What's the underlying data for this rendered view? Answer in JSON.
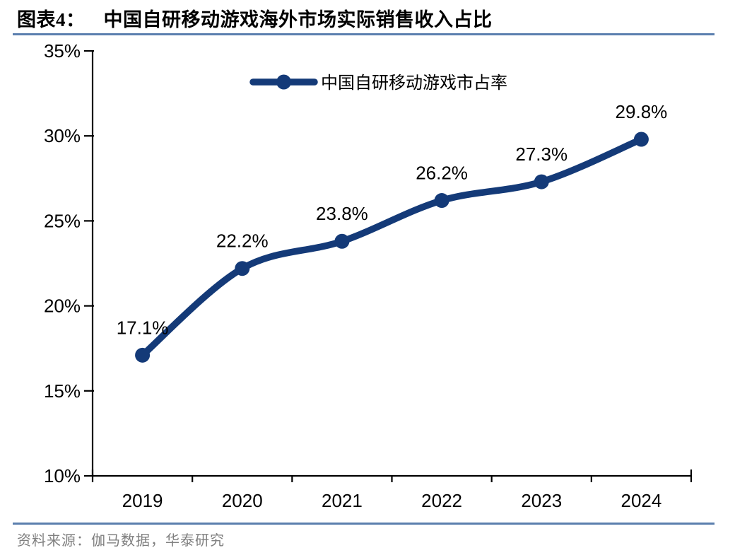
{
  "header": {
    "chart_label": "图表4：",
    "title": "中国自研移动游戏海外市场实际销售收入占比"
  },
  "chart_data": {
    "type": "line",
    "title": "中国自研移动游戏海外市场实际销售收入占比",
    "categories": [
      "2019",
      "2020",
      "2021",
      "2022",
      "2023",
      "2024"
    ],
    "series": [
      {
        "name": "中国自研移动游戏市占率",
        "values": [
          17.1,
          22.2,
          23.8,
          26.2,
          27.3,
          29.8
        ]
      }
    ],
    "data_labels": [
      "17.1%",
      "22.2%",
      "23.8%",
      "26.2%",
      "27.3%",
      "29.8%"
    ],
    "xlabel": "",
    "ylabel": "",
    "ylim": [
      10,
      35
    ],
    "ytick_step": 5,
    "ytick_labels": [
      "10%",
      "15%",
      "20%",
      "25%",
      "30%",
      "35%"
    ],
    "grid": false,
    "legend_position": "top-center",
    "line_color": "#143A78",
    "marker": "circle"
  },
  "footer": {
    "source": "资料来源：伽马数据，华泰研究"
  },
  "colors": {
    "accent_line": "#143A78",
    "divider_blue": "#5B7FAE",
    "source_text": "#7F7F7F",
    "axis": "#000000",
    "label_text": "#000000"
  }
}
